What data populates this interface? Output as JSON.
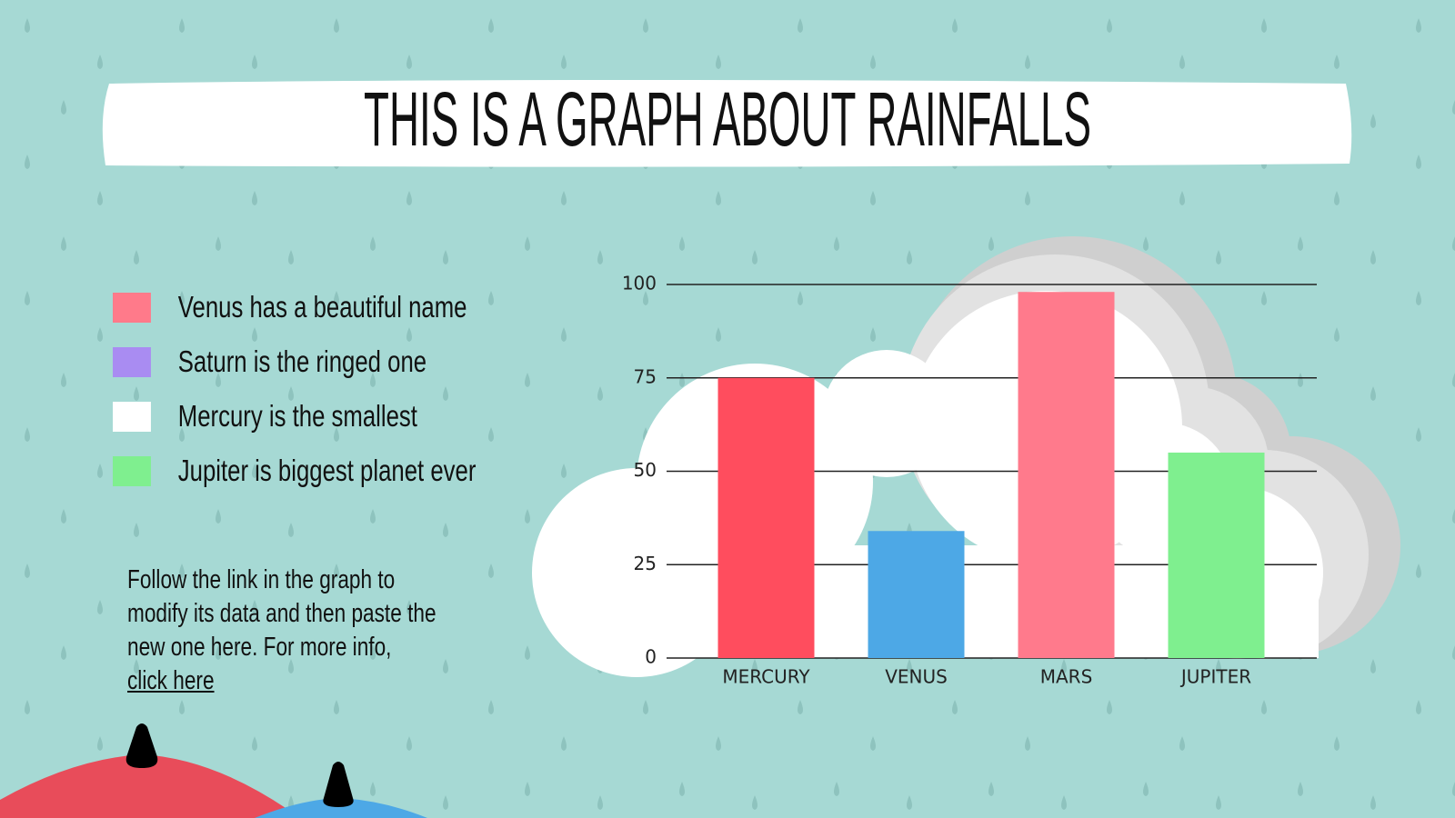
{
  "slide": {
    "title": "THIS IS A GRAPH ABOUT RAINFALLS",
    "legend_items": [
      {
        "label": "Venus has a beautiful name",
        "color": "#ff7a8a"
      },
      {
        "label": "Saturn is the ringed one",
        "color": "#a98cf2"
      },
      {
        "label": "Mercury is the smallest",
        "color": "#ffffff"
      },
      {
        "label": "Jupiter is biggest planet ever",
        "color": "#7fef8f"
      }
    ],
    "note": "Follow the link in the graph to modify its data and then paste the new one here. For more info,",
    "link": "click here"
  },
  "chart_data": {
    "type": "bar",
    "categories": [
      "MERCURY",
      "VENUS",
      "MARS",
      "JUPITER"
    ],
    "values": [
      75,
      34,
      98,
      55
    ],
    "colors": [
      "#ff4d5e",
      "#4da8e6",
      "#ff7a8c",
      "#7fef8f"
    ],
    "ylim": [
      0,
      100
    ],
    "yticks": [
      0,
      25,
      50,
      75,
      100
    ],
    "grid": true
  }
}
